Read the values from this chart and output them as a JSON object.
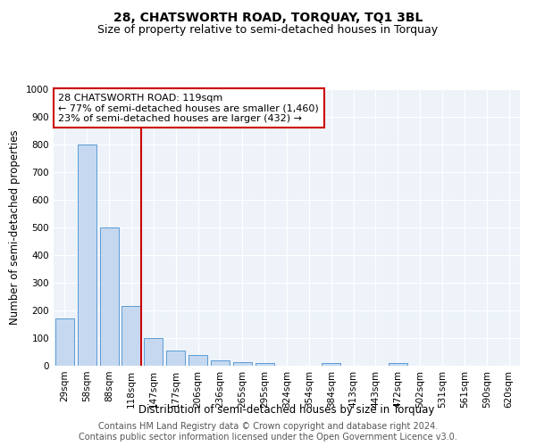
{
  "title": "28, CHATSWORTH ROAD, TORQUAY, TQ1 3BL",
  "subtitle": "Size of property relative to semi-detached houses in Torquay",
  "xlabel": "Distribution of semi-detached houses by size in Torquay",
  "ylabel": "Number of semi-detached properties",
  "categories": [
    "29sqm",
    "58sqm",
    "88sqm",
    "118sqm",
    "147sqm",
    "177sqm",
    "206sqm",
    "236sqm",
    "265sqm",
    "295sqm",
    "324sqm",
    "354sqm",
    "384sqm",
    "413sqm",
    "443sqm",
    "472sqm",
    "502sqm",
    "531sqm",
    "561sqm",
    "590sqm",
    "620sqm"
  ],
  "values": [
    170,
    800,
    500,
    215,
    100,
    55,
    38,
    20,
    12,
    10,
    0,
    0,
    10,
    0,
    0,
    10,
    0,
    0,
    0,
    0,
    0
  ],
  "bar_color": "#c5d8f0",
  "bar_edge_color": "#5b9bd5",
  "marker_index": 3,
  "marker_label": "28 CHATSWORTH ROAD: 119sqm",
  "annotation_line1": "← 77% of semi-detached houses are smaller (1,460)",
  "annotation_line2": "23% of semi-detached houses are larger (432) →",
  "marker_color": "#cc0000",
  "ylim": [
    0,
    1000
  ],
  "yticks": [
    0,
    100,
    200,
    300,
    400,
    500,
    600,
    700,
    800,
    900,
    1000
  ],
  "footer_line1": "Contains HM Land Registry data © Crown copyright and database right 2024.",
  "footer_line2": "Contains public sector information licensed under the Open Government Licence v3.0.",
  "bg_color": "#eef3fa",
  "grid_color": "#ffffff",
  "title_fontsize": 10,
  "subtitle_fontsize": 9,
  "axis_label_fontsize": 8.5,
  "tick_fontsize": 7.5,
  "annotation_fontsize": 8,
  "footer_fontsize": 7
}
